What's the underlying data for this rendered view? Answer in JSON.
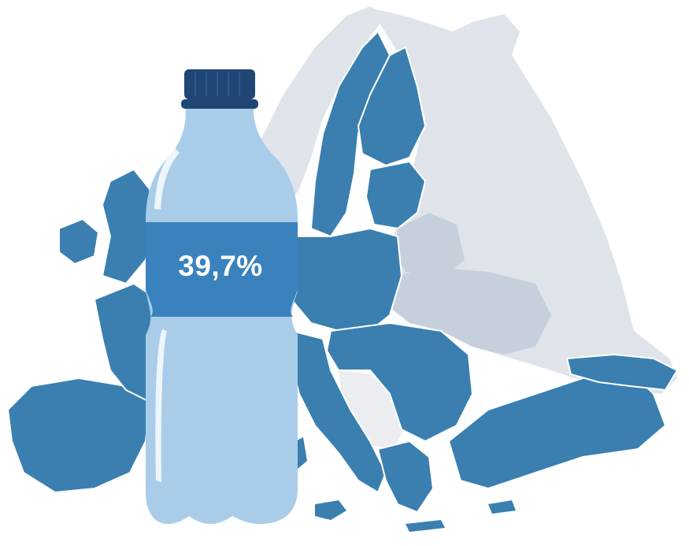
{
  "percentage": "39,7%",
  "colors": {
    "eu_member": "#3a7fb0",
    "non_member_light": "#dfe3ea",
    "non_member_mid": "#c6d0dc",
    "balkan_light": "#ebedf0",
    "bottle_body": "#a9cde9",
    "bottle_label": "#3a82be",
    "bottle_cap": "#1f4675",
    "label_text": "#ffffff"
  },
  "icons": {
    "bottle": "water-bottle-icon",
    "map": "europe-map"
  }
}
